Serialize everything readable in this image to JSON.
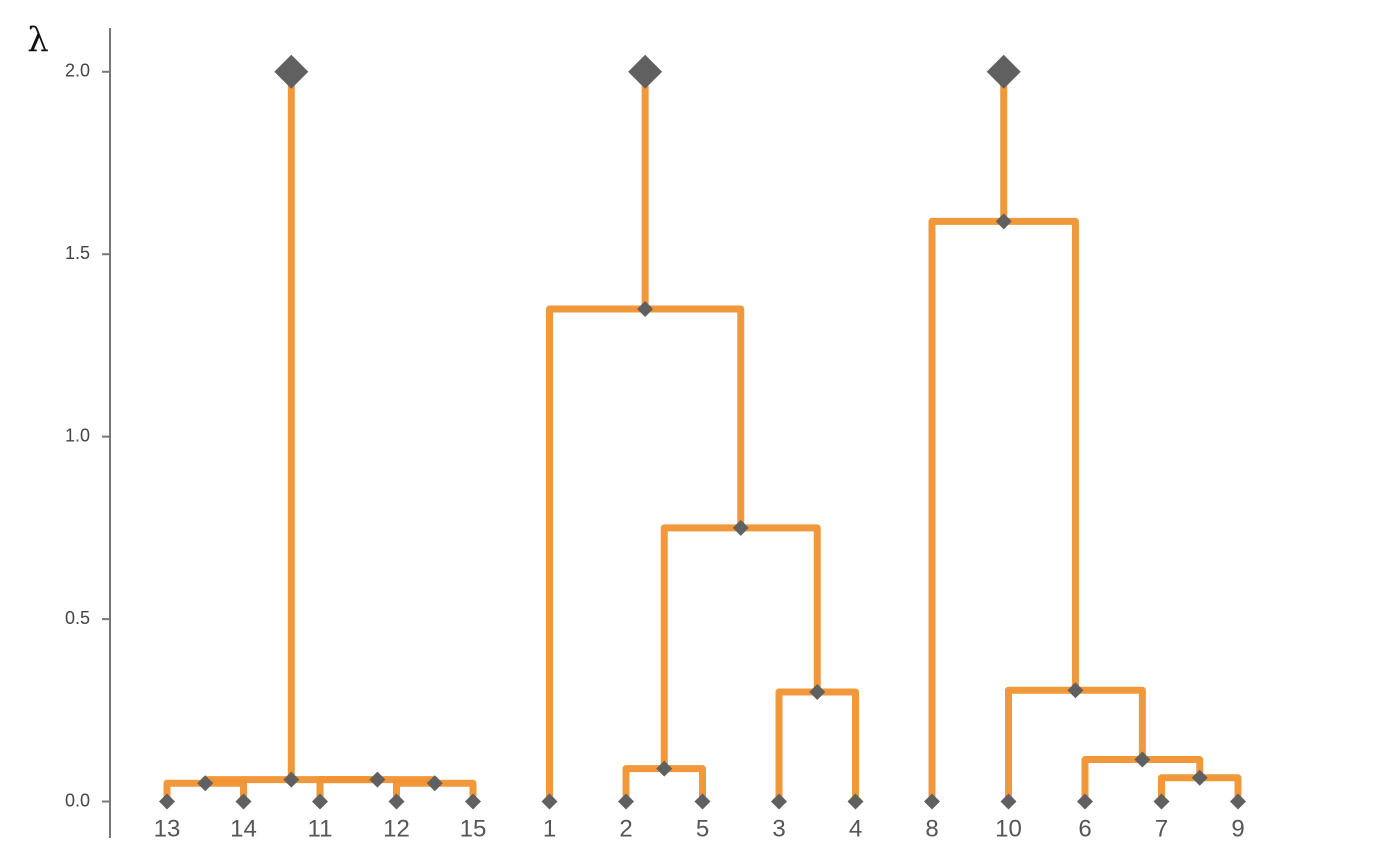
{
  "chart_data": {
    "type": "dendrogram",
    "y_label": "λ",
    "leaves": [
      "13",
      "14",
      "11",
      "12",
      "15",
      "1",
      "2",
      "5",
      "3",
      "4",
      "8",
      "10",
      "6",
      "7",
      "9"
    ],
    "leaf_heights": [
      0,
      0,
      0,
      0,
      0,
      0,
      0,
      0,
      0,
      0,
      0,
      0,
      0,
      0,
      0
    ],
    "merges": [
      {
        "children": [
          0,
          1
        ],
        "height": 0.05
      },
      {
        "children": [
          3,
          4
        ],
        "height": 0.05
      },
      {
        "children": [
          2,
          16
        ],
        "height": 0.06
      },
      {
        "children": [
          15,
          17
        ],
        "height": 0.06
      },
      {
        "children": [
          6,
          7
        ],
        "height": 0.09
      },
      {
        "children": [
          8,
          9
        ],
        "height": 0.3
      },
      {
        "children": [
          19,
          20
        ],
        "height": 0.75
      },
      {
        "children": [
          5,
          21
        ],
        "height": 1.35
      },
      {
        "children": [
          13,
          14
        ],
        "height": 0.065
      },
      {
        "children": [
          12,
          23
        ],
        "height": 0.115
      },
      {
        "children": [
          11,
          24
        ],
        "height": 0.305
      },
      {
        "children": [
          10,
          25
        ],
        "height": 1.59
      }
    ],
    "root_height": 2,
    "link_color": "#f0922f",
    "marker_color": "#606060",
    "ylim": [
      -0.1,
      2.12
    ],
    "yticks": [
      {
        "value": 0,
        "label": "0.0"
      },
      0.5,
      {
        "value": 1,
        "label": "1.0"
      },
      1.5,
      {
        "value": 2,
        "label": "2.0"
      }
    ]
  }
}
